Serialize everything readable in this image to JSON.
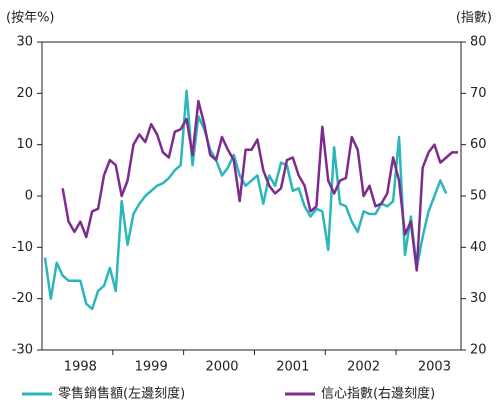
{
  "chart_data": {
    "type": "line",
    "y_label": "(按年%)",
    "y2_label": "(指數)",
    "categories": [
      null,
      null,
      null,
      null,
      null,
      null,
      "1998",
      null,
      null,
      null,
      null,
      null,
      null,
      null,
      null,
      null,
      null,
      null,
      "1999",
      null,
      null,
      null,
      null,
      null,
      null,
      null,
      null,
      null,
      null,
      null,
      "2000",
      null,
      null,
      null,
      null,
      null,
      null,
      null,
      null,
      null,
      null,
      null,
      "2001",
      null,
      null,
      null,
      null,
      null,
      null,
      null,
      null,
      null,
      null,
      null,
      "2002",
      null,
      null,
      null,
      null,
      null,
      null,
      null,
      null,
      null,
      null,
      null,
      "2003",
      null,
      null,
      null,
      null
    ],
    "series": [
      {
        "name": "零售銷售額(左邊刻度)",
        "color": "#2bb7b9",
        "values": [
          -12,
          -20,
          -13,
          -15.5,
          -16.5,
          -16.5,
          -16.5,
          -21,
          -22,
          -18.5,
          -17.5,
          -14,
          -18.5,
          -1,
          -9.5,
          -3.5,
          -1.5,
          0,
          1,
          2,
          2.5,
          3.5,
          5,
          6,
          20.5,
          6,
          15.5,
          13,
          9,
          7,
          4,
          5.5,
          8,
          4,
          2,
          3,
          4,
          -1.5,
          4,
          2,
          6.5,
          6,
          1,
          1.5,
          -2,
          -4,
          -2.5,
          -3,
          -10.5,
          9.5,
          -1.5,
          -2,
          -5,
          -7,
          -3,
          -3.5,
          -3.5,
          -1.5,
          -2,
          -1,
          11.5,
          -11.5,
          -4,
          -14,
          -8,
          -3,
          0,
          3,
          0.5,
          null,
          null
        ]
      },
      {
        "name": "信心指數(右邊刻度)",
        "color": "#7e2b8e",
        "axis": "y2",
        "values": [
          null,
          null,
          null,
          51.5,
          45,
          43,
          45,
          42,
          47,
          47.5,
          54,
          57,
          56,
          50,
          53,
          60,
          62,
          60.5,
          64,
          62,
          58.5,
          57.5,
          62.5,
          63,
          65,
          58,
          68.5,
          64,
          58,
          57,
          61.5,
          59,
          57,
          49,
          59,
          59,
          61,
          55,
          52,
          50.5,
          51.5,
          57,
          57.5,
          54,
          52,
          47,
          48,
          63.5,
          53,
          50.5,
          53,
          53.5,
          61.5,
          59,
          50,
          52,
          48,
          48.5,
          50.5,
          57.5,
          53,
          42.5,
          45,
          35.5,
          55.5,
          58.5,
          60,
          56.5,
          57.5,
          58.5,
          58.5
        ]
      }
    ],
    "ylim": [
      -30,
      30
    ],
    "yticks": [
      -30,
      -20,
      -10,
      0,
      10,
      20,
      30
    ],
    "y2lim": [
      20,
      80
    ],
    "y2ticks": [
      20,
      30,
      40,
      50,
      60,
      70,
      80
    ],
    "grid": false
  }
}
